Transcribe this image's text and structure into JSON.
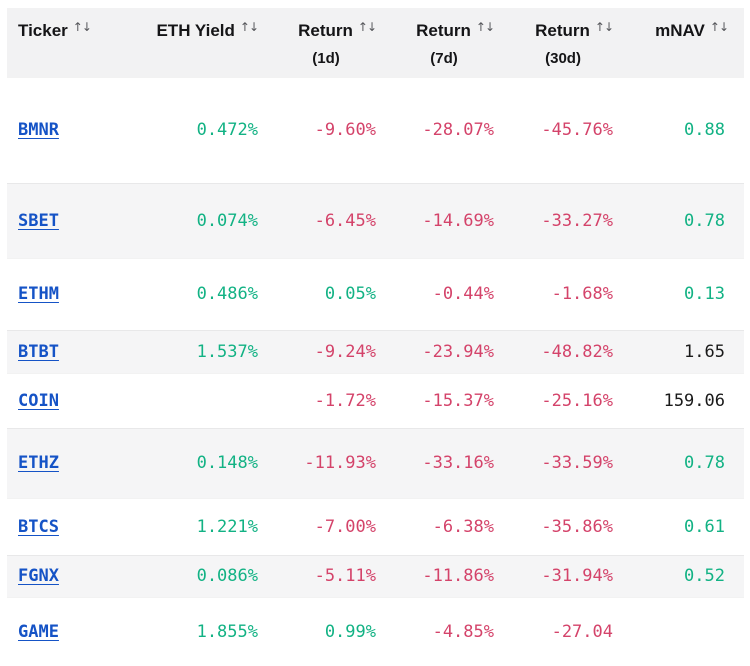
{
  "colors": {
    "positive_green": "#12b284",
    "negative_red": "#d4436a",
    "ticker_link_blue": "#1553c6",
    "neutral_dark": "#1a1a1a",
    "header_bg": "#f2f2f3",
    "stripe_bg": "#f5f5f6"
  },
  "header": {
    "sort_icon_glyph": "↑↓",
    "columns": [
      {
        "label": "Ticker",
        "sub": ""
      },
      {
        "label": "ETH Yield",
        "sub": ""
      },
      {
        "label": "Return",
        "sub": "(1d)"
      },
      {
        "label": "Return",
        "sub": "(7d)"
      },
      {
        "label": "Return",
        "sub": "(30d)"
      },
      {
        "label": "mNAV",
        "sub": ""
      }
    ]
  },
  "table": {
    "rows": [
      {
        "ticker": "BMNR",
        "eth_yield": "0.472%",
        "eth_yield_color": "green",
        "return_1d": "-9.60%",
        "return_1d_color": "red",
        "return_7d": "-28.07%",
        "return_7d_color": "red",
        "return_30d": "-45.76%",
        "return_30d_color": "red",
        "mnav": "0.88",
        "mnav_color": "green"
      },
      {
        "ticker": "SBET",
        "eth_yield": "0.074%",
        "eth_yield_color": "green",
        "return_1d": "-6.45%",
        "return_1d_color": "red",
        "return_7d": "-14.69%",
        "return_7d_color": "red",
        "return_30d": "-33.27%",
        "return_30d_color": "red",
        "mnav": "0.78",
        "mnav_color": "green"
      },
      {
        "ticker": "ETHM",
        "eth_yield": "0.486%",
        "eth_yield_color": "green",
        "return_1d": "0.05%",
        "return_1d_color": "green",
        "return_7d": "-0.44%",
        "return_7d_color": "red",
        "return_30d": "-1.68%",
        "return_30d_color": "red",
        "mnav": "0.13",
        "mnav_color": "green"
      },
      {
        "ticker": "BTBT",
        "eth_yield": "1.537%",
        "eth_yield_color": "green",
        "return_1d": "-9.24%",
        "return_1d_color": "red",
        "return_7d": "-23.94%",
        "return_7d_color": "red",
        "return_30d": "-48.82%",
        "return_30d_color": "red",
        "mnav": "1.65",
        "mnav_color": "dark"
      },
      {
        "ticker": "COIN",
        "eth_yield": "",
        "eth_yield_color": "dark",
        "return_1d": "-1.72%",
        "return_1d_color": "red",
        "return_7d": "-15.37%",
        "return_7d_color": "red",
        "return_30d": "-25.16%",
        "return_30d_color": "red",
        "mnav": "159.06",
        "mnav_color": "dark"
      },
      {
        "ticker": "ETHZ",
        "eth_yield": "0.148%",
        "eth_yield_color": "green",
        "return_1d": "-11.93%",
        "return_1d_color": "red",
        "return_7d": "-33.16%",
        "return_7d_color": "red",
        "return_30d": "-33.59%",
        "return_30d_color": "red",
        "mnav": "0.78",
        "mnav_color": "green"
      },
      {
        "ticker": "BTCS",
        "eth_yield": "1.221%",
        "eth_yield_color": "green",
        "return_1d": "-7.00%",
        "return_1d_color": "red",
        "return_7d": "-6.38%",
        "return_7d_color": "red",
        "return_30d": "-35.86%",
        "return_30d_color": "red",
        "mnav": "0.61",
        "mnav_color": "green"
      },
      {
        "ticker": "FGNX",
        "eth_yield": "0.086%",
        "eth_yield_color": "green",
        "return_1d": "-5.11%",
        "return_1d_color": "red",
        "return_7d": "-11.86%",
        "return_7d_color": "red",
        "return_30d": "-31.94%",
        "return_30d_color": "red",
        "mnav": "0.52",
        "mnav_color": "green"
      },
      {
        "ticker": "GAME",
        "eth_yield": "1.855%",
        "eth_yield_color": "green",
        "return_1d": "0.99%",
        "return_1d_color": "green",
        "return_7d": "-4.85%",
        "return_7d_color": "red",
        "return_30d": "-27.04",
        "return_30d_color": "red",
        "mnav": "",
        "mnav_color": "dark"
      }
    ]
  }
}
